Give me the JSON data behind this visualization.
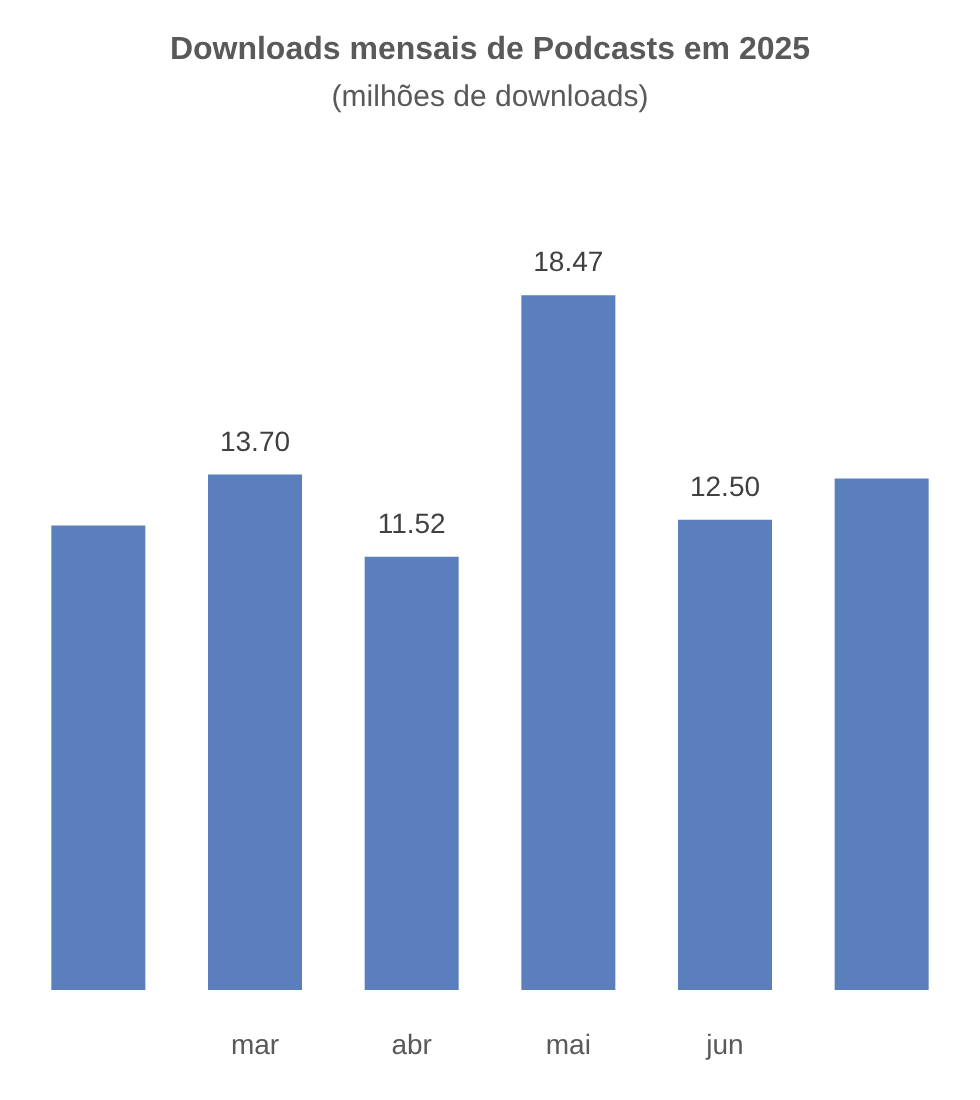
{
  "chart_data": {
    "type": "bar",
    "title": "Downloads mensais de Podcasts em 2025",
    "subtitle": "(milhões de downloads)",
    "categories": [
      null,
      "mar",
      "abr",
      "mai",
      "jun",
      null
    ],
    "values": [
      12.35,
      13.7,
      11.52,
      18.47,
      12.5,
      13.6
    ],
    "value_labels": [
      null,
      "13.70",
      "11.52",
      "18.47",
      "12.50",
      null
    ],
    "color": "#5b7fbc"
  }
}
